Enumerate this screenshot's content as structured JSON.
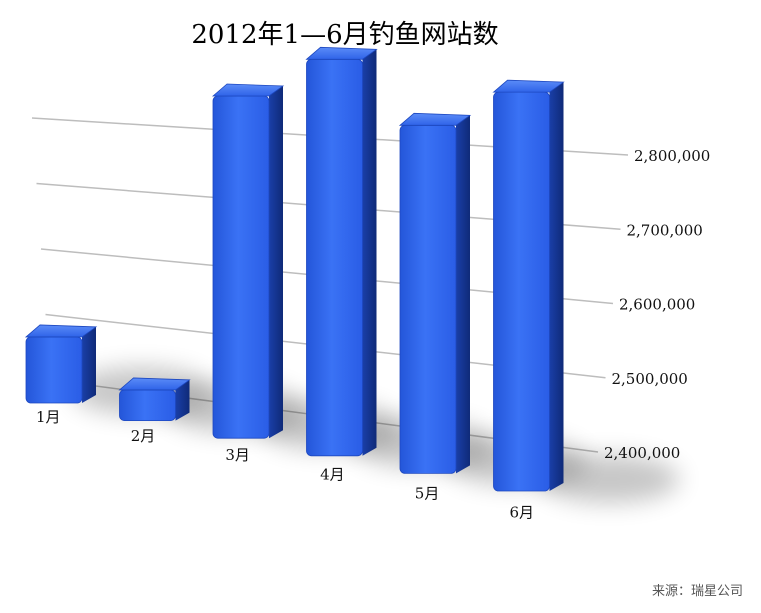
{
  "chart_data": {
    "type": "bar",
    "title": "2012年1—6月钓鱼网站数",
    "categories": [
      "1月",
      "2月",
      "3月",
      "4月",
      "5月",
      "6月"
    ],
    "values": [
      2466000,
      2436000,
      2700000,
      2746000,
      2705000,
      2748000
    ],
    "yticks": [
      "2,400,000",
      "2,500,000",
      "2,600,000",
      "2,700,000",
      "2,800,000"
    ],
    "ylim": [
      2400000,
      2800000
    ],
    "grid": true,
    "bar_color": "#2f63e8",
    "xlabel": "",
    "ylabel": ""
  },
  "footer": {
    "source": "来源：瑞星公司"
  }
}
